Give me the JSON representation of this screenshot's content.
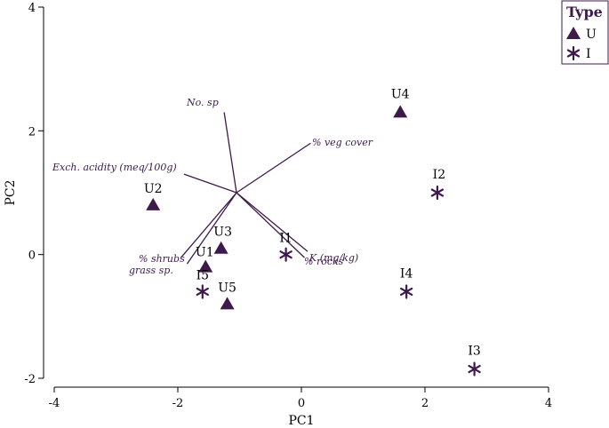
{
  "chart_data": {
    "type": "scatter",
    "xlabel": "PC1",
    "ylabel": "PC2",
    "xlim": [
      -4,
      4
    ],
    "ylim": [
      -2,
      4
    ],
    "xticks": [
      "-4",
      "-2",
      "0",
      "2",
      "4"
    ],
    "yticks": [
      "-2",
      "0",
      "2",
      "4"
    ],
    "grid": false,
    "legend": {
      "title": "Type",
      "placement": "top-right",
      "entries": [
        {
          "label": "U",
          "marker": "triangle"
        },
        {
          "label": "I",
          "marker": "asterisk"
        }
      ]
    },
    "marker_color": "#3d1a4b",
    "series": [
      {
        "name": "U",
        "marker": "triangle",
        "points": [
          {
            "label": "U1",
            "x": -1.55,
            "y": -0.2
          },
          {
            "label": "U2",
            "x": -2.4,
            "y": 0.8
          },
          {
            "label": "U3",
            "x": -1.3,
            "y": 0.1
          },
          {
            "label": "U4",
            "x": 1.6,
            "y": 2.3
          },
          {
            "label": "U5",
            "x": -1.2,
            "y": -0.8
          }
        ]
      },
      {
        "name": "I",
        "marker": "asterisk",
        "points": [
          {
            "label": "I1",
            "x": -0.25,
            "y": 0.0
          },
          {
            "label": "I2",
            "x": 2.2,
            "y": 1.0
          },
          {
            "label": "I3",
            "x": 2.8,
            "y": -1.85
          },
          {
            "label": "I4",
            "x": 1.7,
            "y": -0.6
          },
          {
            "label": "I5",
            "x": -1.6,
            "y": -0.6
          }
        ]
      }
    ],
    "vectors": {
      "origin": [
        -1.05,
        1.0
      ],
      "items": [
        {
          "label": "No. sp",
          "end": [
            -1.25,
            2.3
          ]
        },
        {
          "label": "% veg cover",
          "end": [
            0.15,
            1.8
          ]
        },
        {
          "label": "Exch. acidity (meq/100g)",
          "end": [
            -1.9,
            1.3
          ]
        },
        {
          "label": "% shrubs",
          "end": [
            -1.95,
            -0.05
          ]
        },
        {
          "label": "grass sp.",
          "end": [
            -1.85,
            -0.15
          ]
        },
        {
          "label": "K (mg/kg)",
          "end": [
            0.1,
            0.05
          ]
        },
        {
          "label": "% rocks",
          "end": [
            0.05,
            -0.05
          ]
        }
      ]
    }
  }
}
